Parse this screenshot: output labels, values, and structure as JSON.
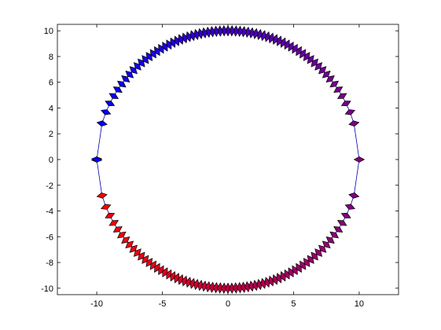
{
  "chart_data": {
    "type": "scatter",
    "title": "",
    "xlabel": "",
    "ylabel": "",
    "xlim": [
      -13,
      13
    ],
    "ylim": [
      -10.5,
      10.5
    ],
    "xticks": [
      -10,
      -5,
      0,
      5,
      10
    ],
    "yticks": [
      10,
      8,
      6,
      4,
      2,
      0,
      -2,
      -4,
      -6,
      -8,
      -10
    ],
    "grid": false,
    "legend": "none",
    "marker": "diamond",
    "line_color": "#0000aa",
    "edge_color": "#000000",
    "color_at_start": "#ff0000",
    "color_at_end": "#0000ff",
    "series": [
      {
        "x": [
          -10.0,
          -9.6,
          -9.3,
          -9.0,
          -8.7,
          -8.4,
          -8.1,
          -7.8,
          -7.5,
          -7.2,
          -6.9,
          -6.6,
          -6.3,
          -6.0,
          -5.7,
          -5.4,
          -5.1,
          -4.8,
          -4.5,
          -4.2,
          -3.9,
          -3.6,
          -3.3,
          -3.0,
          -2.7,
          -2.4,
          -2.1,
          -1.8,
          -1.5,
          -1.2,
          -0.9,
          -0.6,
          -0.3,
          0.0,
          0.3,
          0.6,
          0.9,
          1.2,
          1.5,
          1.8,
          2.1,
          2.4,
          2.7,
          3.0,
          3.3,
          3.6,
          3.9,
          4.2,
          4.5,
          4.8,
          5.1,
          5.4,
          5.7,
          6.0,
          6.3,
          6.6,
          6.9,
          7.2,
          7.5,
          7.8,
          8.1,
          8.4,
          8.7,
          9.0,
          9.3,
          9.6,
          10.0,
          9.6,
          9.3,
          9.0,
          8.7,
          8.4,
          8.1,
          7.8,
          7.5,
          7.2,
          6.9,
          6.6,
          6.3,
          6.0,
          5.7,
          5.4,
          5.1,
          4.8,
          4.5,
          4.2,
          3.9,
          3.6,
          3.3,
          3.0,
          2.7,
          2.4,
          2.1,
          1.8,
          1.5,
          1.2,
          0.9,
          0.6,
          0.3,
          0.0,
          -0.3,
          -0.6,
          -0.9,
          -1.2,
          -1.5,
          -1.8,
          -2.1,
          -2.4,
          -2.7,
          -3.0,
          -3.3,
          -3.6,
          -3.9,
          -4.2,
          -4.5,
          -4.8,
          -5.1,
          -5.4,
          -5.7,
          -6.0,
          -6.3,
          -6.6,
          -6.9,
          -7.2,
          -7.5,
          -7.8,
          -8.1,
          -8.4,
          -8.7,
          -9.0,
          -9.3,
          -9.6,
          -10.0
        ],
        "y": [
          0.0,
          -2.8,
          -3.68,
          -4.36,
          -4.93,
          -5.43,
          -5.86,
          -6.26,
          -6.61,
          -6.94,
          -7.24,
          -7.51,
          -7.77,
          -8.0,
          -8.22,
          -8.42,
          -8.6,
          -8.77,
          -8.93,
          -9.08,
          -9.21,
          -9.33,
          -9.44,
          -9.54,
          -9.63,
          -9.71,
          -9.78,
          -9.84,
          -9.89,
          -9.93,
          -9.96,
          -9.98,
          -10.0,
          -10.0,
          -10.0,
          -9.98,
          -9.96,
          -9.93,
          -9.89,
          -9.84,
          -9.78,
          -9.71,
          -9.63,
          -9.54,
          -9.44,
          -9.33,
          -9.21,
          -9.08,
          -8.93,
          -8.77,
          -8.6,
          -8.42,
          -8.22,
          -8.0,
          -7.77,
          -7.51,
          -7.24,
          -6.94,
          -6.61,
          -6.26,
          -5.86,
          -5.43,
          -4.93,
          -4.36,
          -3.68,
          -2.8,
          0.0,
          2.8,
          3.68,
          4.36,
          4.93,
          5.43,
          5.86,
          6.26,
          6.61,
          6.94,
          7.24,
          7.51,
          7.77,
          8.0,
          8.22,
          8.42,
          8.6,
          8.77,
          8.93,
          9.08,
          9.21,
          9.33,
          9.44,
          9.54,
          9.63,
          9.71,
          9.78,
          9.84,
          9.89,
          9.93,
          9.96,
          9.98,
          10.0,
          10.0,
          10.0,
          9.98,
          9.96,
          9.93,
          9.89,
          9.84,
          9.78,
          9.71,
          9.63,
          9.54,
          9.44,
          9.33,
          9.21,
          9.08,
          8.93,
          8.77,
          8.6,
          8.42,
          8.22,
          8.0,
          7.77,
          7.51,
          7.24,
          6.94,
          6.61,
          6.26,
          5.86,
          5.43,
          4.93,
          4.36,
          3.68,
          2.8,
          0.0
        ]
      }
    ]
  }
}
